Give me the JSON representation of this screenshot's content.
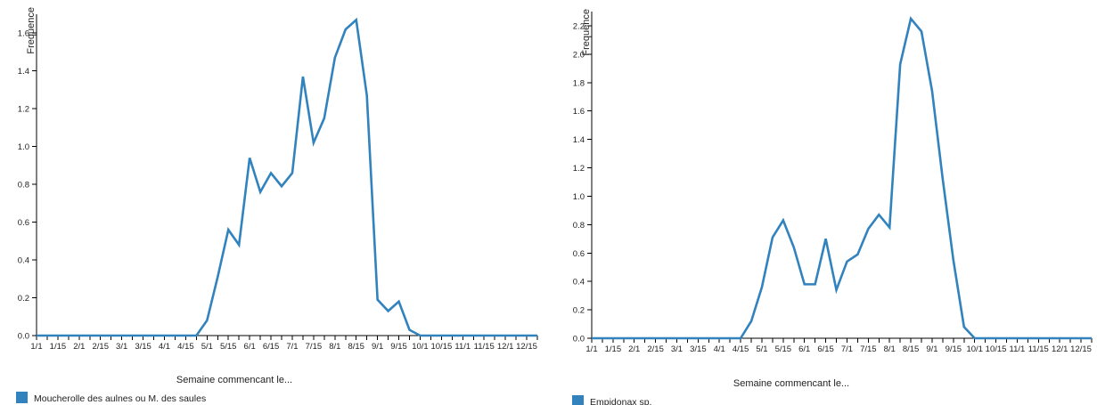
{
  "colors": {
    "series": "#3182bd",
    "axis": "#000000",
    "text": "#222222"
  },
  "chart_data": [
    {
      "type": "line",
      "ylabel": "Frequence",
      "xlabel": "Semaine commencant le...",
      "ylim": [
        0,
        1.7
      ],
      "yticks": [
        0.0,
        0.2,
        0.4,
        0.6,
        0.8,
        1.0,
        1.2,
        1.4,
        1.6
      ],
      "yticks_text": [
        "0.0",
        "0.2",
        "0.4",
        "0.6",
        "0.8",
        "1.0",
        "1.2",
        "1.4",
        "1.6"
      ],
      "x_tick_labels": [
        "1/1",
        "1/15",
        "2/1",
        "2/15",
        "3/1",
        "3/15",
        "4/1",
        "4/15",
        "5/1",
        "5/15",
        "6/1",
        "6/15",
        "7/1",
        "7/15",
        "8/1",
        "8/15",
        "9/1",
        "9/15",
        "10/1",
        "10/15",
        "11/1",
        "11/15",
        "12/1",
        "12/15"
      ],
      "grid": false,
      "legend_position": "bottom-left",
      "series": [
        {
          "name": "Moucherolle des aulnes ou M. des saules",
          "values": [
            0,
            0,
            0,
            0,
            0,
            0,
            0,
            0,
            0,
            0,
            0,
            0,
            0,
            0,
            0,
            0,
            0.08,
            0.31,
            0.56,
            0.48,
            0.94,
            0.76,
            0.86,
            0.79,
            0.86,
            1.37,
            1.02,
            1.15,
            1.47,
            1.62,
            1.67,
            1.27,
            0.19,
            0.13,
            0.18,
            0.03,
            0,
            0,
            0,
            0,
            0,
            0,
            0,
            0,
            0,
            0,
            0,
            0
          ]
        }
      ]
    },
    {
      "type": "line",
      "ylabel": "Frequence",
      "xlabel": "Semaine commencant le...",
      "ylim": [
        0,
        2.3
      ],
      "yticks": [
        0.0,
        0.2,
        0.4,
        0.6,
        0.8,
        1.0,
        1.2,
        1.4,
        1.6,
        1.8,
        2.0,
        2.2
      ],
      "yticks_text": [
        "0.0",
        "0.2",
        "0.4",
        "0.6",
        "0.8",
        "1.0",
        "1.2",
        "1.4",
        "1.6",
        "1.8",
        "2.0",
        "2.2"
      ],
      "x_tick_labels": [
        "1/1",
        "1/15",
        "2/1",
        "2/15",
        "3/1",
        "3/15",
        "4/1",
        "4/15",
        "5/1",
        "5/15",
        "6/1",
        "6/15",
        "7/1",
        "7/15",
        "8/1",
        "8/15",
        "9/1",
        "9/15",
        "10/1",
        "10/15",
        "11/1",
        "11/15",
        "12/1",
        "12/15"
      ],
      "grid": false,
      "legend_position": "bottom-left",
      "series": [
        {
          "name": "Empidonax sp.",
          "values": [
            0,
            0,
            0,
            0,
            0,
            0,
            0,
            0,
            0,
            0,
            0,
            0,
            0,
            0,
            0,
            0.12,
            0.36,
            0.71,
            0.83,
            0.64,
            0.38,
            0.38,
            0.7,
            0.34,
            0.54,
            0.59,
            0.77,
            0.87,
            0.78,
            1.93,
            2.25,
            2.16,
            1.74,
            1.12,
            0.55,
            0.08,
            0,
            0,
            0,
            0,
            0,
            0,
            0,
            0,
            0,
            0,
            0,
            0
          ]
        }
      ]
    }
  ]
}
